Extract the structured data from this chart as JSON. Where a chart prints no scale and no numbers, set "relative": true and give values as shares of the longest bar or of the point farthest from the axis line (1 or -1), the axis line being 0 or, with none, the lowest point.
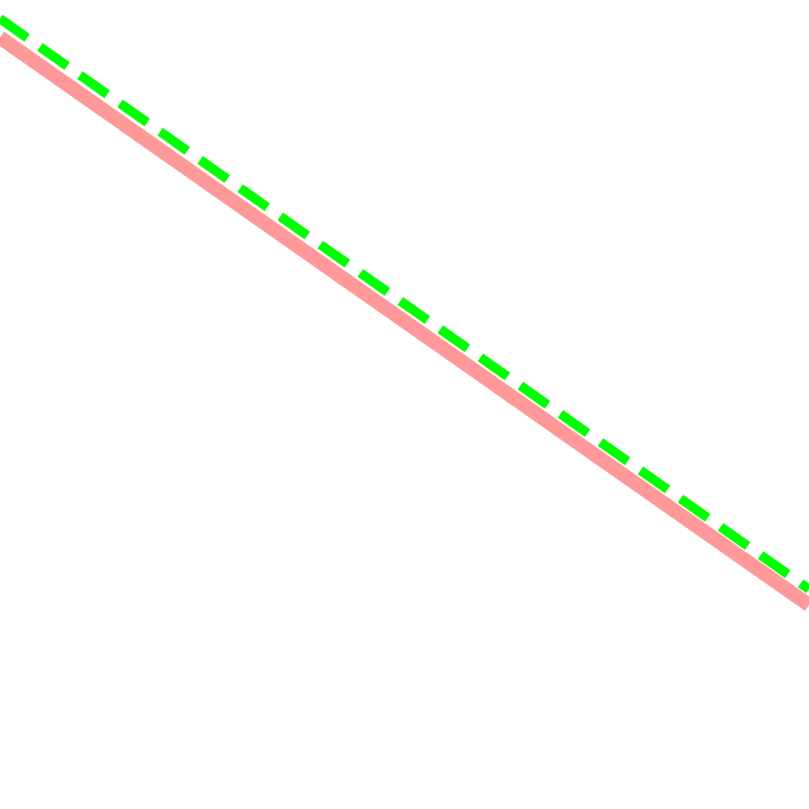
{
  "chart_data": {
    "type": "line",
    "relative": true,
    "categories": [
      null,
      null
    ],
    "series": [
      {
        "color": "#ff9999",
        "values": [
          0.968,
          0
        ],
        "line_style": "solid"
      },
      {
        "color": "#00ff00",
        "values": [
          1,
          0.027
        ],
        "line_style": "dashed"
      }
    ],
    "grid": false,
    "legend": false
  }
}
